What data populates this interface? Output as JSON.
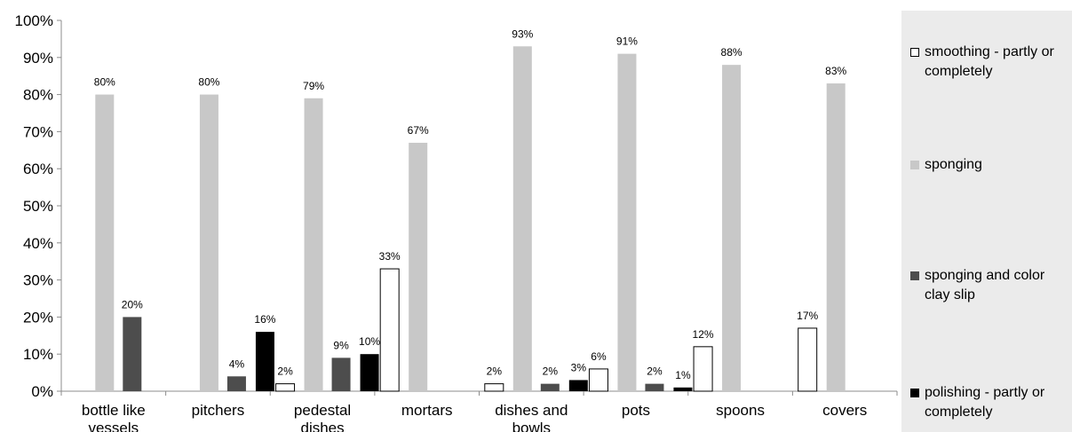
{
  "chart_data": {
    "type": "bar",
    "categories": [
      [
        "bottle like",
        "vessels"
      ],
      [
        "pitchers"
      ],
      [
        "pedestal",
        "dishes"
      ],
      [
        "mortars"
      ],
      [
        "dishes and",
        "bowls"
      ],
      [
        "pots"
      ],
      [
        "spoons"
      ],
      [
        "covers"
      ]
    ],
    "series": [
      {
        "name": "smoothing - partly or completely",
        "color": "#ffffff",
        "stroke": "#000000",
        "values": [
          null,
          null,
          2,
          33,
          2,
          6,
          12,
          17
        ],
        "labels": [
          "",
          "",
          "2%",
          "33%",
          "2%",
          "6%",
          "12%",
          "17%"
        ]
      },
      {
        "name": "sponging",
        "color": "#c8c8c8",
        "stroke": "none",
        "values": [
          80,
          80,
          79,
          67,
          93,
          91,
          88,
          83
        ],
        "labels": [
          "80%",
          "80%",
          "79%",
          "67%",
          "93%",
          "91%",
          "88%",
          "83%"
        ]
      },
      {
        "name": "sponging and color clay slip",
        "color": "#4d4d4d",
        "stroke": "none",
        "values": [
          20,
          4,
          9,
          null,
          2,
          2,
          null,
          null
        ],
        "labels": [
          "20%",
          "4%",
          "9%",
          "",
          "2%",
          "2%",
          "",
          ""
        ]
      },
      {
        "name": "polishing - partly or completely",
        "color": "#000000",
        "stroke": "none",
        "values": [
          null,
          16,
          10,
          null,
          3,
          1,
          null,
          null
        ],
        "labels": [
          "",
          "16%",
          "10%",
          "",
          "3%",
          "1%",
          "",
          ""
        ]
      }
    ],
    "y_ticks": [
      "0%",
      "10%",
      "20%",
      "30%",
      "40%",
      "50%",
      "60%",
      "70%",
      "80%",
      "90%",
      "100%"
    ],
    "ylim": [
      0,
      100
    ],
    "grid": false,
    "legend_position": "right",
    "title": "",
    "xlabel": "",
    "ylabel": ""
  }
}
